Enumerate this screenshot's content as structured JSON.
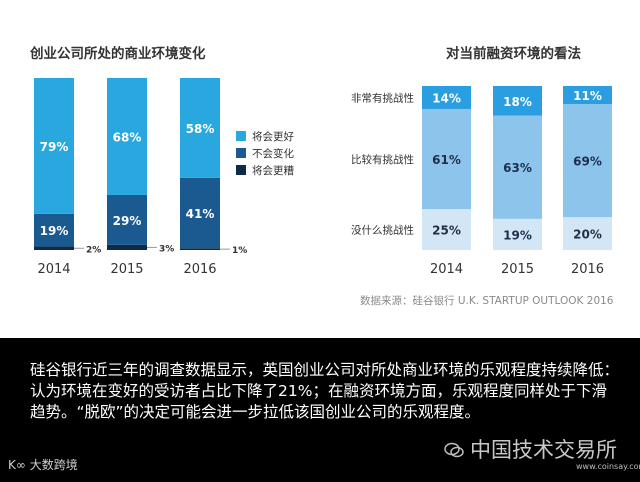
{
  "chart_data": [
    {
      "type": "bar",
      "stacked": true,
      "title": "创业公司所处的商业环境变化",
      "categories": [
        "2014",
        "2015",
        "2016"
      ],
      "series": [
        {
          "name": "将会更糟",
          "values": [
            2,
            3,
            1
          ],
          "labels": [
            "2%",
            "3%",
            "1%"
          ],
          "color": "#0f2a45"
        },
        {
          "name": "不会变化",
          "values": [
            19,
            29,
            41
          ],
          "labels": [
            "19%",
            "29%",
            "41%"
          ],
          "color": "#1b5a90"
        },
        {
          "name": "将会更好",
          "values": [
            79,
            68,
            58
          ],
          "labels": [
            "79%",
            "68%",
            "58%"
          ],
          "color": "#29a8e0"
        }
      ],
      "ylim": [
        0,
        100
      ],
      "legend": "right"
    },
    {
      "type": "bar",
      "stacked": true,
      "title": "对当前融资环境的看法",
      "categories": [
        "2014",
        "2015",
        "2016"
      ],
      "series": [
        {
          "name": "没什么挑战性",
          "values": [
            25,
            19,
            20
          ],
          "labels": [
            "25%",
            "19%",
            "20%"
          ],
          "color": "#d2e6f6"
        },
        {
          "name": "比较有挑战性",
          "values": [
            61,
            63,
            69
          ],
          "labels": [
            "61%",
            "63%",
            "69%"
          ],
          "color": "#8cc4ec"
        },
        {
          "name": "非常有挑战性",
          "values": [
            14,
            18,
            11
          ],
          "labels": [
            "14%",
            "18%",
            "11%"
          ],
          "color": "#2a9ee0"
        }
      ],
      "ylim": [
        0,
        100
      ],
      "legend": "left"
    }
  ],
  "source": "数据来源：硅谷银行 U.K. STARTUP OUTLOOK 2016",
  "caption": "硅谷银行近三年的调查数据显示，英国创业公司对所处商业环境的乐观程度持续降低：认为环境在变好的受访者占比下降了21%；在融资环境方面，乐观程度同样处于下滑趋势。“脱欧”的决定可能会进一步拉低该国创业公司的乐观程度。",
  "watermark_left": "大数跨境",
  "watermark_right": "中国技术交易所",
  "watermark_site": "www.coinsay.com"
}
